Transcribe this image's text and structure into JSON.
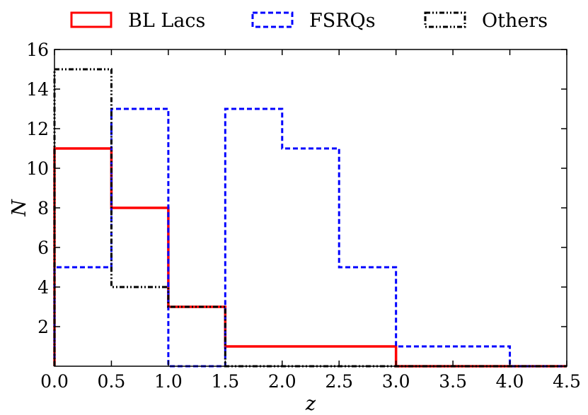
{
  "chart_data": {
    "type": "histogram",
    "xlabel": "z",
    "ylabel": "N",
    "xlim": [
      0,
      4.5
    ],
    "ylim": [
      0,
      16
    ],
    "x_ticks": [
      "0.0",
      "0.5",
      "1.0",
      "1.5",
      "2.0",
      "2.5",
      "3.0",
      "3.5",
      "4.0",
      "4.5"
    ],
    "y_ticks": [
      "2",
      "4",
      "6",
      "8",
      "10",
      "12",
      "14",
      "16"
    ],
    "bin_edges": [
      0,
      0.5,
      1.0,
      1.5,
      2.0,
      2.5,
      3.0,
      3.5,
      4.0,
      4.5
    ],
    "legend_position": "top, outside plot area",
    "grid": false,
    "series": [
      {
        "name": "BL Lacs",
        "color": "#ff0000",
        "linestyle": "solid",
        "counts": [
          11,
          8,
          3,
          1,
          1,
          1,
          0,
          0,
          0
        ]
      },
      {
        "name": "FSRQs",
        "color": "#0000ff",
        "linestyle": "dashed",
        "counts": [
          5,
          13,
          0,
          13,
          11,
          5,
          1,
          1,
          0
        ]
      },
      {
        "name": "Others",
        "color": "#000000",
        "linestyle": "dash-dot-dot",
        "counts": [
          15,
          4,
          3,
          0,
          0,
          0,
          0,
          0,
          0
        ]
      }
    ]
  }
}
